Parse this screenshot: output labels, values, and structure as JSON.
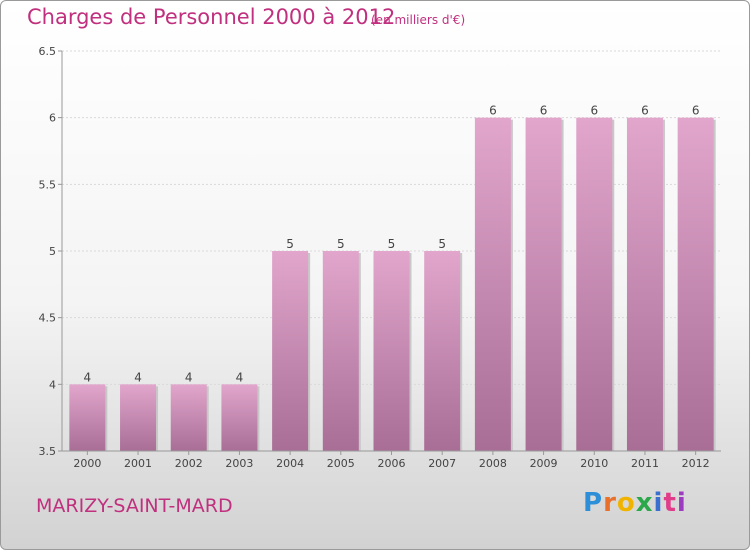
{
  "header": {
    "title": "Charges de Personnel 2000 à 2012",
    "subtitle": "(en milliers d'€)"
  },
  "footer": {
    "commune": "MARIZY-SAINT-MARD",
    "logo_letters": [
      "P",
      "r",
      "o",
      "x",
      "i",
      "t",
      "i"
    ],
    "logo_colors": [
      "#2d8fd8",
      "#e8702a",
      "#f0b400",
      "#2aa84a",
      "#3a6fd0",
      "#e03c8a",
      "#9c3cc0"
    ]
  },
  "colors": {
    "bar_top": "#e2a6cc",
    "bar_bottom": "#a86e96",
    "text_accent": "#c0307e"
  },
  "chart_data": {
    "type": "bar",
    "categories": [
      "2000",
      "2001",
      "2002",
      "2003",
      "2004",
      "2005",
      "2006",
      "2007",
      "2008",
      "2009",
      "2010",
      "2011",
      "2012"
    ],
    "values": [
      4,
      4,
      4,
      4,
      5,
      5,
      5,
      5,
      6,
      6,
      6,
      6,
      6
    ],
    "data_labels": [
      "4",
      "4",
      "4",
      "4",
      "5",
      "5",
      "5",
      "5",
      "6",
      "6",
      "6",
      "6",
      "6"
    ],
    "yticks": [
      3.5,
      4,
      4.5,
      5,
      5.5,
      6,
      6.5
    ],
    "ytick_labels": [
      "3.5",
      "4",
      "4.5",
      "5",
      "5.5",
      "6",
      "6.5"
    ],
    "ylim": [
      3.5,
      6.5
    ],
    "grid": true,
    "xlabel": "",
    "ylabel": ""
  }
}
